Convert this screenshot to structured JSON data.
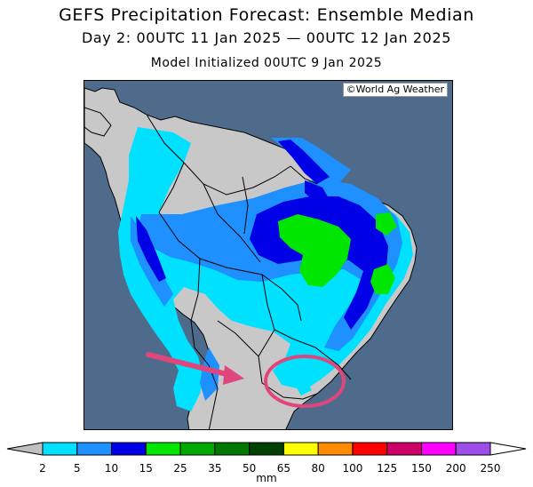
{
  "header": {
    "title": "GEFS Precipitation Forecast: Ensemble Median",
    "period": "Day 2: 00UTC 11 Jan 2025 — 00UTC 12 Jan 2025",
    "init": "Model Initialized 00UTC 9 Jan 2025"
  },
  "map": {
    "credit": "©World Ag Weather",
    "ocean_color": "#4f6b8b",
    "land_color": "#c8c8c8",
    "annotation": {
      "arrow_color": "#e0457b",
      "circle_color": "#e0457b"
    }
  },
  "colorbar": {
    "unit": "mm",
    "bins": [
      {
        "value": "2",
        "color": "#00e0ff"
      },
      {
        "value": "5",
        "color": "#1e90ff"
      },
      {
        "value": "10",
        "color": "#0000e6"
      },
      {
        "value": "15",
        "color": "#00e600"
      },
      {
        "value": "25",
        "color": "#00a800"
      },
      {
        "value": "35",
        "color": "#007800"
      },
      {
        "value": "50",
        "color": "#004000"
      },
      {
        "value": "65",
        "color": "#ffff00"
      },
      {
        "value": "80",
        "color": "#ff8c00"
      },
      {
        "value": "100",
        "color": "#ff0000"
      },
      {
        "value": "125",
        "color": "#cc0066"
      },
      {
        "value": "150",
        "color": "#ff00ff"
      },
      {
        "value": "200",
        "color": "#9e4ee8"
      },
      {
        "value": "250",
        "color": ""
      }
    ]
  }
}
